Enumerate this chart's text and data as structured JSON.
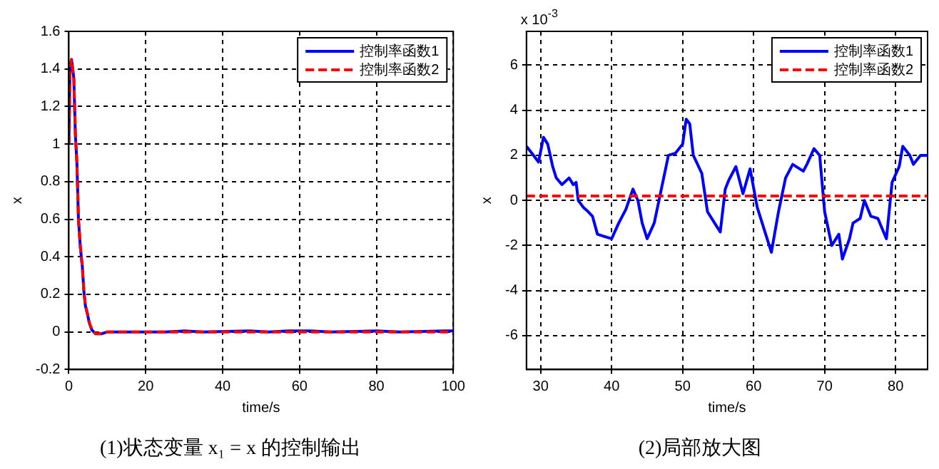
{
  "chart_data": [
    {
      "type": "line",
      "title": "(1)状态变量 x₁ = x 的控制输出",
      "xlabel": "time/s",
      "ylabel": "x",
      "xlim": [
        0,
        100
      ],
      "ylim": [
        -0.2,
        1.6
      ],
      "xticks": [
        0,
        20,
        40,
        60,
        80,
        100
      ],
      "yticks": [
        -0.2,
        0,
        0.2,
        0.4,
        0.6,
        0.8,
        1,
        1.2,
        1.4,
        1.6
      ],
      "grid": true,
      "legend": "top right",
      "marker": "none",
      "series": [
        {
          "name": "控制率函数1",
          "color": "#0000ff",
          "line_style": "solid",
          "x": [
            0,
            0.3,
            0.7,
            1.3,
            1.7,
            2.1,
            2.5,
            3,
            3.5,
            3.9,
            4.3,
            4.8,
            5.3,
            6,
            7,
            8.5,
            10,
            25,
            30,
            35,
            47,
            52,
            57,
            63,
            68,
            80,
            86,
            98,
            100
          ],
          "values": [
            1.0,
            1.4,
            1.45,
            1.35,
            1.05,
            0.9,
            0.6,
            0.45,
            0.35,
            0.22,
            0.14,
            0.1,
            0.05,
            0.01,
            -0.01,
            -0.01,
            0,
            0,
            0.005,
            0,
            0.005,
            0,
            0.005,
            0.005,
            0,
            0.005,
            0,
            0.005,
            0.005
          ]
        },
        {
          "name": "控制率函数2",
          "color": "#ff0000",
          "line_style": "dashed",
          "x": [
            0,
            0.3,
            0.7,
            1.3,
            1.7,
            2.1,
            2.5,
            3,
            3.5,
            3.9,
            4.3,
            4.8,
            5.3,
            6,
            7,
            8.5,
            10,
            100
          ],
          "values": [
            1.0,
            1.42,
            1.45,
            1.35,
            1.05,
            0.9,
            0.6,
            0.45,
            0.35,
            0.22,
            0.14,
            0.1,
            0.05,
            0.01,
            -0.01,
            -0.01,
            0,
            0
          ]
        }
      ]
    },
    {
      "type": "line",
      "title": "(2)局部放大图",
      "xlabel": "time/s",
      "ylabel": "x",
      "annotations": [
        "x 10$^{-3}$"
      ],
      "xlim": [
        28,
        84.5
      ],
      "ylim": [
        -7.5,
        7.5
      ],
      "xticks": [
        30,
        40,
        50,
        60,
        70,
        80
      ],
      "yticks": [
        -6,
        -4,
        -2,
        0,
        2,
        4,
        6
      ],
      "grid": true,
      "legend": "top right",
      "marker": "none",
      "series": [
        {
          "name": "控制率函数1",
          "color": "#0000ff",
          "line_style": "solid",
          "x": [
            28,
            29,
            29.7,
            30.4,
            31,
            31.7,
            32.2,
            33,
            34,
            34.6,
            35,
            35.3,
            36,
            36.7,
            37.3,
            38,
            39,
            40,
            41,
            42,
            43,
            43.7,
            44.3,
            45,
            46,
            47,
            48,
            49,
            50,
            50.5,
            51,
            51.5,
            52.7,
            53.5,
            54.5,
            55.3,
            56,
            56.5,
            57.5,
            58.5,
            59.5,
            60.5,
            61.5,
            62.5,
            63.5,
            64.5,
            65.5,
            67,
            67.5,
            68.5,
            69.3,
            70,
            71,
            72,
            72.5,
            73.5,
            74,
            75,
            75.6,
            76.5,
            77.5,
            78.7,
            79.5,
            80.5,
            81,
            82,
            82.5,
            83.5,
            84.5
          ],
          "values": [
            2.4,
            2.0,
            1.7,
            2.8,
            2.5,
            1.5,
            1.0,
            0.7,
            1.0,
            0.7,
            0.8,
            0,
            -0.3,
            -0.5,
            -0.7,
            -1.5,
            -1.6,
            -1.7,
            -1.0,
            -0.4,
            0.5,
            0,
            -1.0,
            -1.7,
            -1.0,
            0.5,
            2.0,
            2.1,
            2.5,
            3.6,
            3.4,
            2.0,
            1.2,
            -0.5,
            -1.0,
            -1.4,
            0.5,
            0.9,
            1.5,
            0.3,
            1.4,
            -0.3,
            -1.3,
            -2.3,
            -0.5,
            1.0,
            1.6,
            1.3,
            1.6,
            2.3,
            2.0,
            -0.5,
            -2.0,
            -1.5,
            -2.6,
            -1.7,
            -1.0,
            -0.8,
            0,
            -0.7,
            -0.8,
            -1.7,
            0.8,
            1.5,
            2.4,
            2.0,
            1.6,
            2.0,
            2.0
          ]
        },
        {
          "name": "控制率函数2",
          "color": "#ff0000",
          "line_style": "dashed",
          "x": [
            28,
            84.5
          ],
          "values": [
            0.2,
            0.2
          ]
        }
      ]
    }
  ]
}
